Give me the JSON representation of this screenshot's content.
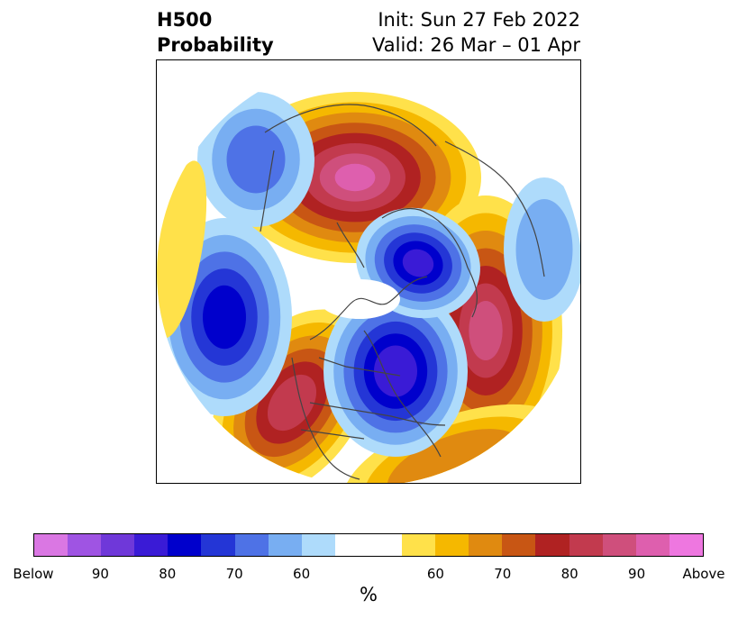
{
  "header": {
    "left_line1": "H500",
    "left_line2": "Probability",
    "right_line1": "Init: Sun 27 Feb 2022",
    "right_line2": "Valid: 26 Mar – 01 Apr"
  },
  "colorbar": {
    "colors": [
      "#da77e3",
      "#9f54e3",
      "#6f38d9",
      "#3a1bd6",
      "#0000cc",
      "#2436d6",
      "#4e72e6",
      "#78aef2",
      "#aedbfb",
      "#ffffff",
      "#ffffff",
      "#ffe14a",
      "#f5b800",
      "#e08a10",
      "#c85614",
      "#b02222",
      "#c23a4e",
      "#cf4f7c",
      "#de5fae",
      "#ee77e0"
    ],
    "labels": [
      "Below",
      "90",
      "80",
      "70",
      "60",
      "",
      "60",
      "70",
      "80",
      "90",
      "Above"
    ],
    "unit": "%"
  },
  "map": {
    "fill_colors": {
      "yellow": "#ffe14a",
      "gold": "#f5b800",
      "orange": "#e08a10",
      "rust": "#c85614",
      "red": "#b02222",
      "crimson": "#c23a4e",
      "rose": "#cf4f7c",
      "pink": "#de5fae",
      "lightblue": "#aedbfb",
      "skyblue": "#78aef2",
      "blue": "#4e72e6",
      "royal": "#2436d6",
      "navy": "#0000cc",
      "indigo": "#3a1bd6",
      "violet": "#6f38d9"
    },
    "border_color": "#444444"
  }
}
